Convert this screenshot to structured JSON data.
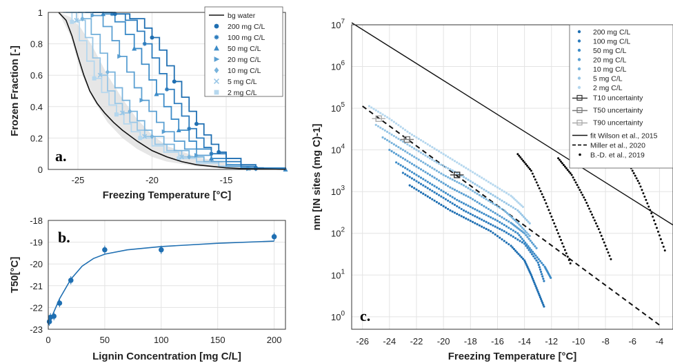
{
  "chart_data": [
    {
      "id": "a",
      "type": "line",
      "panel_label": "a.",
      "xlabel": "Freezing Temperature [°C]",
      "ylabel": "Frozen Fraction [-]",
      "xlim": [
        -27,
        -11
      ],
      "ylim": [
        0,
        1
      ],
      "xticks": [
        -25,
        -20,
        -15
      ],
      "yticks": [
        0,
        0.2,
        0.4,
        0.6,
        0.8,
        1
      ],
      "grid": true,
      "legend_position": "top-right",
      "series": [
        {
          "name": "bg water",
          "color": "#111111",
          "marker": "line",
          "x": [
            -26.3,
            -25.8,
            -25.4,
            -25.0,
            -24.6,
            -24.2,
            -23.7,
            -23.2,
            -22.6,
            -22.0,
            -21.0,
            -20.0,
            -19.0,
            -18.0,
            -17.0,
            -16.0,
            -15.0,
            -14.0,
            -12.0,
            -11.0
          ],
          "y": [
            1,
            0.95,
            0.85,
            0.72,
            0.6,
            0.5,
            0.42,
            0.36,
            0.3,
            0.25,
            0.18,
            0.12,
            0.08,
            0.05,
            0.03,
            0.02,
            0.01,
            0.005,
            0.002,
            0.0
          ]
        },
        {
          "name": "200 mg C/L",
          "color": "#1f6fb2",
          "marker": "circle",
          "x": [
            -24.0,
            -22.5,
            -21.5,
            -20.5,
            -20.0,
            -19.5,
            -19.0,
            -18.5,
            -18.0,
            -17.5,
            -17.0,
            -16.5,
            -16.0,
            -15.5,
            -15.0,
            -14.0,
            -13.0,
            -12.5,
            -11.0
          ],
          "y": [
            1,
            0.99,
            0.96,
            0.9,
            0.84,
            0.76,
            0.66,
            0.56,
            0.46,
            0.37,
            0.29,
            0.22,
            0.16,
            0.11,
            0.07,
            0.03,
            0.01,
            0.005,
            0.0
          ]
        },
        {
          "name": "100 mg C/L",
          "color": "#2b7bbd",
          "marker": "asterisk",
          "x": [
            -24.0,
            -22.7,
            -21.8,
            -21.0,
            -20.5,
            -20.0,
            -19.5,
            -19.0,
            -18.5,
            -18.0,
            -17.5,
            -17.0,
            -16.5,
            -16.0,
            -15.0,
            -14.0,
            -13.0,
            -11.0
          ],
          "y": [
            1,
            0.99,
            0.95,
            0.88,
            0.8,
            0.71,
            0.61,
            0.51,
            0.42,
            0.34,
            0.26,
            0.2,
            0.14,
            0.1,
            0.05,
            0.02,
            0.005,
            0.0
          ]
        },
        {
          "name": "50 mg C/L",
          "color": "#3d8cc8",
          "marker": "triangle",
          "x": [
            -24.5,
            -23.3,
            -22.5,
            -21.8,
            -21.2,
            -20.7,
            -20.2,
            -19.7,
            -19.2,
            -18.7,
            -18.2,
            -17.5,
            -17.0,
            -16.0,
            -15.0,
            -14.0,
            -11.0
          ],
          "y": [
            1,
            0.99,
            0.94,
            0.86,
            0.77,
            0.67,
            0.57,
            0.48,
            0.4,
            0.32,
            0.25,
            0.18,
            0.13,
            0.07,
            0.03,
            0.01,
            0.0
          ]
        },
        {
          "name": "20 mg C/L",
          "color": "#5a9fd2",
          "marker": "triangle-right",
          "x": [
            -25.0,
            -24.0,
            -23.3,
            -22.7,
            -22.2,
            -21.7,
            -21.2,
            -20.7,
            -20.2,
            -19.7,
            -19.2,
            -18.5,
            -17.8,
            -17.0,
            -16.0,
            -15.0,
            -13.5,
            -11.0
          ],
          "y": [
            1,
            0.98,
            0.91,
            0.82,
            0.72,
            0.62,
            0.52,
            0.44,
            0.37,
            0.3,
            0.24,
            0.18,
            0.13,
            0.09,
            0.05,
            0.02,
            0.005,
            0.0
          ]
        },
        {
          "name": "10 mg C/L",
          "color": "#78b3dc",
          "marker": "diamond",
          "x": [
            -25.5,
            -24.7,
            -24.1,
            -23.5,
            -23.0,
            -22.5,
            -22.0,
            -21.5,
            -21.0,
            -20.5,
            -20.0,
            -19.2,
            -18.5,
            -17.5,
            -16.5,
            -15.0,
            -13.0,
            -11.0
          ],
          "y": [
            1,
            0.96,
            0.86,
            0.74,
            0.62,
            0.52,
            0.44,
            0.37,
            0.31,
            0.25,
            0.21,
            0.16,
            0.12,
            0.08,
            0.05,
            0.02,
            0.005,
            0.0
          ]
        },
        {
          "name": "5 mg C/L",
          "color": "#98c6e6",
          "marker": "cross",
          "x": [
            -25.8,
            -25.1,
            -24.5,
            -24.0,
            -23.5,
            -23.0,
            -22.5,
            -22.0,
            -21.5,
            -21.0,
            -20.5,
            -19.8,
            -19.0,
            -18.0,
            -17.0,
            -15.5,
            -13.5,
            -11.0
          ],
          "y": [
            1,
            0.95,
            0.84,
            0.71,
            0.6,
            0.5,
            0.42,
            0.36,
            0.3,
            0.25,
            0.21,
            0.16,
            0.12,
            0.08,
            0.05,
            0.02,
            0.005,
            0.0
          ]
        },
        {
          "name": "2 mg C/L",
          "color": "#b5d7ee",
          "marker": "square",
          "x": [
            -26.0,
            -25.4,
            -24.9,
            -24.4,
            -23.9,
            -23.4,
            -22.9,
            -22.4,
            -21.9,
            -21.4,
            -20.8,
            -20.0,
            -19.2,
            -18.2,
            -17.0,
            -15.5,
            -13.5,
            -11.0
          ],
          "y": [
            1,
            0.94,
            0.82,
            0.69,
            0.58,
            0.49,
            0.41,
            0.35,
            0.29,
            0.24,
            0.2,
            0.15,
            0.11,
            0.07,
            0.04,
            0.02,
            0.005,
            0.0
          ]
        }
      ]
    },
    {
      "id": "b",
      "type": "scatter",
      "panel_label": "b.",
      "xlabel": "Lignin Concentration [mg C/L]",
      "ylabel": "T50[°C]",
      "xlim": [
        0,
        210
      ],
      "ylim": [
        -23,
        -18
      ],
      "xticks": [
        0,
        50,
        100,
        150,
        200
      ],
      "yticks": [
        -18,
        -19,
        -20,
        -21,
        -22,
        -23
      ],
      "grid": true,
      "color": "#1f6fb2",
      "points": {
        "x": [
          1,
          2,
          5,
          10,
          20,
          50,
          100,
          200
        ],
        "y": [
          -22.65,
          -22.45,
          -22.4,
          -21.8,
          -20.75,
          -19.35,
          -19.35,
          -18.75
        ]
      },
      "fit": {
        "x": [
          0,
          5,
          10,
          20,
          30,
          40,
          50,
          70,
          100,
          150,
          200
        ],
        "y": [
          -22.8,
          -22.2,
          -21.6,
          -20.7,
          -20.1,
          -19.75,
          -19.55,
          -19.35,
          -19.2,
          -19.05,
          -18.95
        ]
      }
    },
    {
      "id": "c",
      "type": "scatter",
      "panel_label": "c.",
      "xlabel": "Freezing Temperature [°C]",
      "ylabel": "nm [IN sites (mg C)-1]",
      "xlim": [
        -26.8,
        -3
      ],
      "ylog": true,
      "ylim_exp": [
        -0.3,
        7
      ],
      "xticks": [
        -26,
        -24,
        -22,
        -20,
        -18,
        -16,
        -14,
        -12,
        -10,
        -8,
        -6,
        -4
      ],
      "yticks_exp": [
        0,
        1,
        2,
        3,
        4,
        5,
        6,
        7
      ],
      "grid": true,
      "legend_position": "top-right",
      "series": [
        {
          "name": "200 mg C/L",
          "color": "#1f6fb2",
          "x": [
            -22.5,
            -21.0,
            -19.5,
            -18.0,
            -16.5,
            -15.0,
            -14.0,
            -13.5,
            -13.0,
            -12.5
          ],
          "y_exp": [
            3.15,
            2.85,
            2.55,
            2.3,
            2.05,
            1.7,
            1.35,
            1.0,
            0.6,
            0.2
          ]
        },
        {
          "name": "100 mg C/L",
          "color": "#2b7bbd",
          "x": [
            -23.0,
            -21.5,
            -20.0,
            -18.5,
            -17.0,
            -15.5,
            -14.0,
            -13.0,
            -12.5
          ],
          "y_exp": [
            3.45,
            3.15,
            2.85,
            2.55,
            2.3,
            2.05,
            1.75,
            1.3,
            0.8
          ]
        },
        {
          "name": "50 mg C/L",
          "color": "#3d8cc8",
          "x": [
            -23.5,
            -22.0,
            -20.5,
            -19.0,
            -17.5,
            -16.0,
            -14.5,
            -13.5,
            -12.5,
            -12.0
          ],
          "y_exp": [
            3.7,
            3.4,
            3.1,
            2.8,
            2.55,
            2.3,
            2.0,
            1.6,
            1.2,
            0.9
          ]
        },
        {
          "name": "20 mg C/L",
          "color": "#5a9fd2",
          "x": [
            -24.0,
            -22.5,
            -21.0,
            -19.5,
            -18.0,
            -16.5,
            -15.0,
            -14.0,
            -13.0
          ],
          "y_exp": [
            4.0,
            3.7,
            3.4,
            3.1,
            2.85,
            2.55,
            2.25,
            2.0,
            1.6
          ]
        },
        {
          "name": "10 mg C/L",
          "color": "#78b3dc",
          "x": [
            -24.5,
            -23.0,
            -21.5,
            -20.0,
            -18.5,
            -17.0,
            -15.5,
            -14.5,
            -13.5
          ],
          "y_exp": [
            4.3,
            4.0,
            3.7,
            3.4,
            3.15,
            2.85,
            2.55,
            2.25,
            1.9
          ]
        },
        {
          "name": "5 mg C/L",
          "color": "#98c6e6",
          "x": [
            -25.0,
            -23.5,
            -22.0,
            -20.5,
            -19.0,
            -17.5,
            -16.0,
            -14.5,
            -13.5
          ],
          "y_exp": [
            4.6,
            4.3,
            4.0,
            3.7,
            3.45,
            3.15,
            2.85,
            2.55,
            2.2
          ]
        },
        {
          "name": "2 mg C/L",
          "color": "#b5d7ee",
          "x": [
            -25.5,
            -24.0,
            -22.5,
            -21.0,
            -19.5,
            -18.0,
            -16.5,
            -15.0,
            -14.0
          ],
          "y_exp": [
            5.05,
            4.75,
            4.4,
            4.1,
            3.8,
            3.5,
            3.2,
            2.9,
            2.6
          ]
        }
      ],
      "uncertainty": [
        {
          "name": "T10 uncertainty",
          "color": "#333333",
          "x": -19.0,
          "y_exp": 3.4,
          "xerr": 0.5
        },
        {
          "name": "T50 uncertainty",
          "color": "#777777",
          "x": -22.7,
          "y_exp": 4.25,
          "xerr": 0.5
        },
        {
          "name": "T90 uncertainty",
          "color": "#aaaaaa",
          "x": -24.8,
          "y_exp": 4.75,
          "xerr": 0.5
        }
      ],
      "reference": [
        {
          "name": "fit Wilson et al., 2015",
          "style": "solid",
          "x": [
            -26.8,
            -3.0
          ],
          "y_exp": [
            7.05,
            2.2
          ]
        },
        {
          "name": "Miller et al., 2020",
          "style": "dashed",
          "x": [
            -26.0,
            -4.0
          ],
          "y_exp": [
            5.05,
            -0.2
          ]
        },
        {
          "name": "B.-D. et al., 2019",
          "style": "dots",
          "x": [
            -14.5,
            -13.5,
            -12.5,
            -11.5,
            -10.5,
            -11.5,
            -10.5,
            -9.5,
            -8.5,
            -7.5,
            -6.5,
            -5.5,
            -4.5,
            -3.5
          ],
          "y_exp": [
            3.9,
            3.5,
            2.8,
            2.0,
            1.2,
            3.8,
            3.4,
            2.8,
            2.1,
            1.3,
            3.8,
            3.2,
            2.4,
            1.5
          ]
        }
      ]
    }
  ]
}
